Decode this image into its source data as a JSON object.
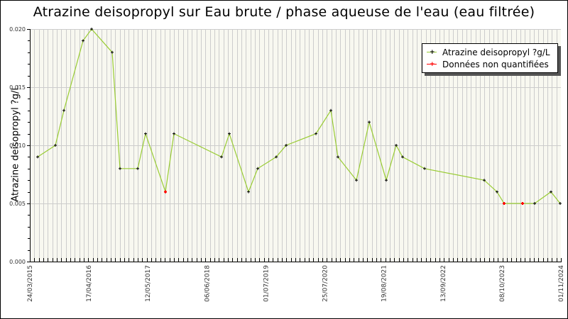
{
  "chart_data": {
    "type": "line",
    "title": "Atrazine deisopropyl sur Eau brute / phase aqueuse de l'eau (eau filtrée)",
    "xlabel": "",
    "ylabel": "Atrazine deisopropyl ?g/L",
    "ylim": [
      0,
      0.02
    ],
    "y_ticks": [
      "0.000",
      "0.005",
      "0.010",
      "0.015",
      "0.020"
    ],
    "x_ticks": [
      "24/03/2015",
      "17/04/2016",
      "12/05/2017",
      "06/06/2018",
      "01/07/2019",
      "25/07/2020",
      "19/08/2021",
      "13/09/2022",
      "08/10/2023",
      "01/11/2024"
    ],
    "grid": true,
    "legend_position": "top-right",
    "series": [
      {
        "name": "Atrazine deisopropyl ?g/L",
        "color": "#99cc33",
        "marker_color": "#000000",
        "points": [
          {
            "x": 53,
            "value": 0.009
          },
          {
            "x": 78,
            "value": 0.01
          },
          {
            "x": 90,
            "value": 0.013
          },
          {
            "x": 117,
            "value": 0.019
          },
          {
            "x": 129,
            "value": 0.02
          },
          {
            "x": 158,
            "value": 0.018
          },
          {
            "x": 169,
            "value": 0.008
          },
          {
            "x": 194,
            "value": 0.008
          },
          {
            "x": 205,
            "value": 0.011
          },
          {
            "x": 233,
            "value": 0.006,
            "non_quantified": true
          },
          {
            "x": 245,
            "value": 0.011
          },
          {
            "x": 312,
            "value": 0.009
          },
          {
            "x": 323,
            "value": 0.011
          },
          {
            "x": 350,
            "value": 0.006
          },
          {
            "x": 363,
            "value": 0.008
          },
          {
            "x": 389,
            "value": 0.009
          },
          {
            "x": 403,
            "value": 0.01
          },
          {
            "x": 445,
            "value": 0.011
          },
          {
            "x": 466,
            "value": 0.013
          },
          {
            "x": 476,
            "value": 0.009
          },
          {
            "x": 502,
            "value": 0.007
          },
          {
            "x": 520,
            "value": 0.012
          },
          {
            "x": 544,
            "value": 0.007
          },
          {
            "x": 558,
            "value": 0.01
          },
          {
            "x": 567,
            "value": 0.009
          },
          {
            "x": 598,
            "value": 0.008
          },
          {
            "x": 682,
            "value": 0.007
          },
          {
            "x": 700,
            "value": 0.006
          },
          {
            "x": 710,
            "value": 0.005,
            "non_quantified": true
          },
          {
            "x": 736,
            "value": 0.005,
            "non_quantified": true
          },
          {
            "x": 753,
            "value": 0.005
          },
          {
            "x": 776,
            "value": 0.006
          },
          {
            "x": 789,
            "value": 0.005
          }
        ]
      },
      {
        "name": "Données non quantifiées",
        "color": "#ff0000"
      }
    ]
  },
  "legend": {
    "items": [
      {
        "label": "Atrazine deisopropyl ?g/L",
        "line_color": "#99cc33",
        "marker_color": "#000000"
      },
      {
        "label": "Données non quantifiées",
        "line_color": "#ff0000",
        "marker_color": "#ff0000"
      }
    ]
  }
}
